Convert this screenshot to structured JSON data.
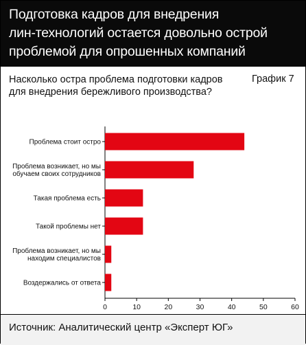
{
  "header": {
    "title": "Подготовка кадров для внедрения\nлин-технологий остается довольно острой\nпроблемой для опрошенных компаний"
  },
  "chart_number": "График 7",
  "chart_data": {
    "type": "bar",
    "orientation": "horizontal",
    "title": "Насколько остра проблема подготовки кадров\nдля внедрения бережливого производства?",
    "categories": [
      [
        "Проблема стоит остро"
      ],
      [
        "Проблема возникает, но мы",
        "обучаем своих сотрудников"
      ],
      [
        "Такая проблема есть"
      ],
      [
        "Такой проблемы нет"
      ],
      [
        "Проблема возникает, но мы",
        "находим специалистов"
      ],
      [
        "Воздержались от ответа"
      ]
    ],
    "values": [
      44,
      28,
      12,
      12,
      2,
      2
    ],
    "xlim": [
      0,
      60
    ],
    "xticks": [
      0,
      10,
      20,
      30,
      40,
      50,
      60
    ],
    "bar_color": "#e30613",
    "grid": false
  },
  "footer": {
    "source": "Источник: Аналитический центр «Эксперт ЮГ»"
  }
}
